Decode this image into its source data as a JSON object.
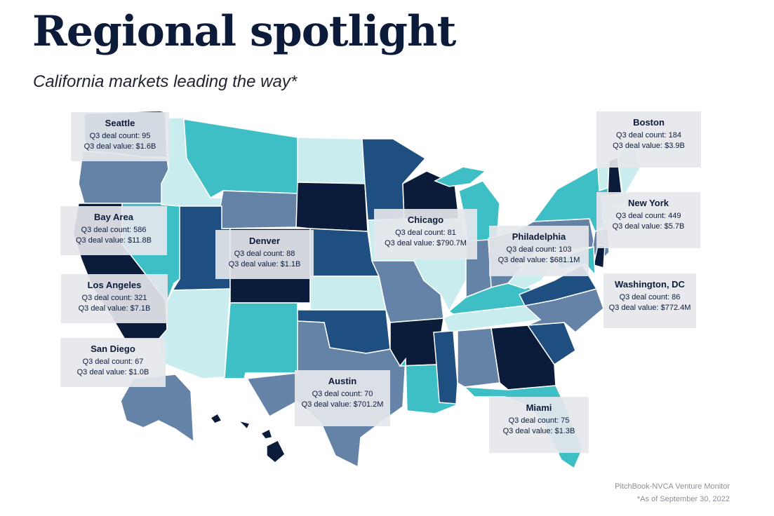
{
  "title": "Regional spotlight",
  "subtitle": "California markets leading the way*",
  "source": "PitchBook-NVCA Venture Monitor",
  "footnote": "*As of September 30, 2022",
  "colors": {
    "darkest": "#0b1c3a",
    "dark": "#1f4e80",
    "mid": "#6583a7",
    "teal": "#3dbfc5",
    "light": "#c9ecee"
  },
  "callouts": [
    {
      "city": "Seattle",
      "count_line": "Q3 deal count: 95",
      "value_line": "Q3 deal value: $1.6B"
    },
    {
      "city": "Bay Area",
      "count_line": "Q3 deal count: 586",
      "value_line": "Q3 deal value: $11.8B"
    },
    {
      "city": "Los Angeles",
      "count_line": "Q3 deal count: 321",
      "value_line": "Q3 deal value: $7.1B"
    },
    {
      "city": "San Diego",
      "count_line": "Q3 deal count: 67",
      "value_line": "Q3 deal value: $1.0B"
    },
    {
      "city": "Denver",
      "count_line": "Q3 deal count: 88",
      "value_line": "Q3 deal value: $1.1B"
    },
    {
      "city": "Austin",
      "count_line": "Q3 deal count: 70",
      "value_line": "Q3 deal value: $701.2M"
    },
    {
      "city": "Chicago",
      "count_line": "Q3 deal count: 81",
      "value_line": "Q3 deal value: $790.7M"
    },
    {
      "city": "Philadelphia",
      "count_line": "Q3 deal count: 103",
      "value_line": "Q3 deal value: $681.1M"
    },
    {
      "city": "Boston",
      "count_line": "Q3 deal count: 184",
      "value_line": "Q3 deal value: $3.9B"
    },
    {
      "city": "New York",
      "count_line": "Q3 deal count: 449",
      "value_line": "Q3 deal value: $5.7B"
    },
    {
      "city": "Washington, DC",
      "count_line": "Q3 deal count: 86",
      "value_line": "Q3 deal value: $772.4M"
    },
    {
      "city": "Miami",
      "count_line": "Q3 deal count: 75",
      "value_line": "Q3 deal value: $1.3B"
    }
  ],
  "state_tiers": {
    "WA": "dark",
    "OR": "mid",
    "CA": "darkest",
    "NV": "teal",
    "ID": "light",
    "MT": "teal",
    "WY": "mid",
    "UT": "dark",
    "CO": "darkest",
    "AZ": "light",
    "NM": "teal",
    "ND": "light",
    "SD": "darkest",
    "NE": "dark",
    "KS": "light",
    "OK": "dark",
    "TX": "mid",
    "MN": "dark",
    "IA": "light",
    "MO": "mid",
    "AR": "darkest",
    "LA": "teal",
    "WI": "darkest",
    "IL": "light",
    "MI": "teal",
    "IN": "mid",
    "OH": "mid",
    "KY": "teal",
    "TN": "light",
    "MS": "dark",
    "AL": "mid",
    "GA": "darkest",
    "FL": "teal",
    "SC": "dark",
    "NC": "mid",
    "VA": "dark",
    "WV": "light",
    "PA": "mid",
    "NY": "teal",
    "VT": "light",
    "NH": "darkest",
    "ME": "light",
    "MA": "light",
    "CT": "light",
    "RI": "light",
    "NJ": "mid",
    "DE": "darkest",
    "MD": "teal",
    "AK": "mid",
    "HI": "darkest"
  }
}
